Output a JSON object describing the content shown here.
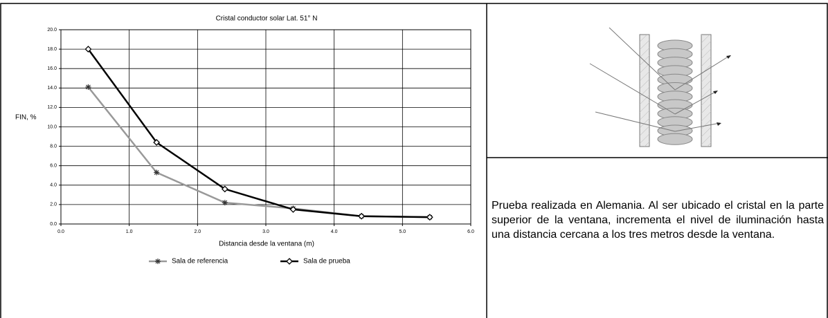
{
  "chart_data": {
    "type": "line",
    "title": "Cristal conductor solar Lat. 51° N",
    "y_label": "FIN, %",
    "x_label": "Distancia desde la ventana (m)",
    "x": [
      0.4,
      1.4,
      2.4,
      3.4,
      4.4,
      5.4
    ],
    "series": [
      {
        "name": "Sala de referencia",
        "color": "#999999",
        "marker": "asterisk",
        "values": [
          14.1,
          5.3,
          2.2,
          1.6,
          0.8,
          0.7
        ]
      },
      {
        "name": "Sala de prueba",
        "color": "#000000",
        "marker": "diamond",
        "values": [
          18.0,
          8.4,
          3.6,
          1.5,
          0.8,
          0.7
        ]
      }
    ],
    "xlim": [
      0,
      6
    ],
    "xticks": [
      {
        "value": 0,
        "label": "0.0"
      },
      {
        "value": 1,
        "label": "1.0"
      },
      {
        "value": 2,
        "label": "2.0"
      },
      {
        "value": 3,
        "label": "3.0"
      },
      {
        "value": 4,
        "label": "4.0"
      },
      {
        "value": 5,
        "label": "5.0"
      },
      {
        "value": 6,
        "label": "6.0"
      }
    ],
    "ylim": [
      0,
      20
    ],
    "yticks": [
      {
        "value": 0,
        "label": "0.0"
      },
      {
        "value": 2,
        "label": "2.0"
      },
      {
        "value": 4,
        "label": "4.0"
      },
      {
        "value": 6,
        "label": "6.0"
      },
      {
        "value": 8,
        "label": "8.0"
      },
      {
        "value": 10,
        "label": "10.0"
      },
      {
        "value": 12,
        "label": "12.0"
      },
      {
        "value": 14,
        "label": "14.0"
      },
      {
        "value": 16,
        "label": "16.0"
      },
      {
        "value": 18,
        "label": "18.0"
      },
      {
        "value": 20,
        "label": "20.0"
      }
    ],
    "grid": true,
    "legend": "bottom"
  },
  "caption": "Prueba realizada en Alemania. Al ser ubicado el cristal en la parte superior de la ventana, incrementa el nivel de iluminación hasta una distancia cercana a los tres metros desde la ventana."
}
